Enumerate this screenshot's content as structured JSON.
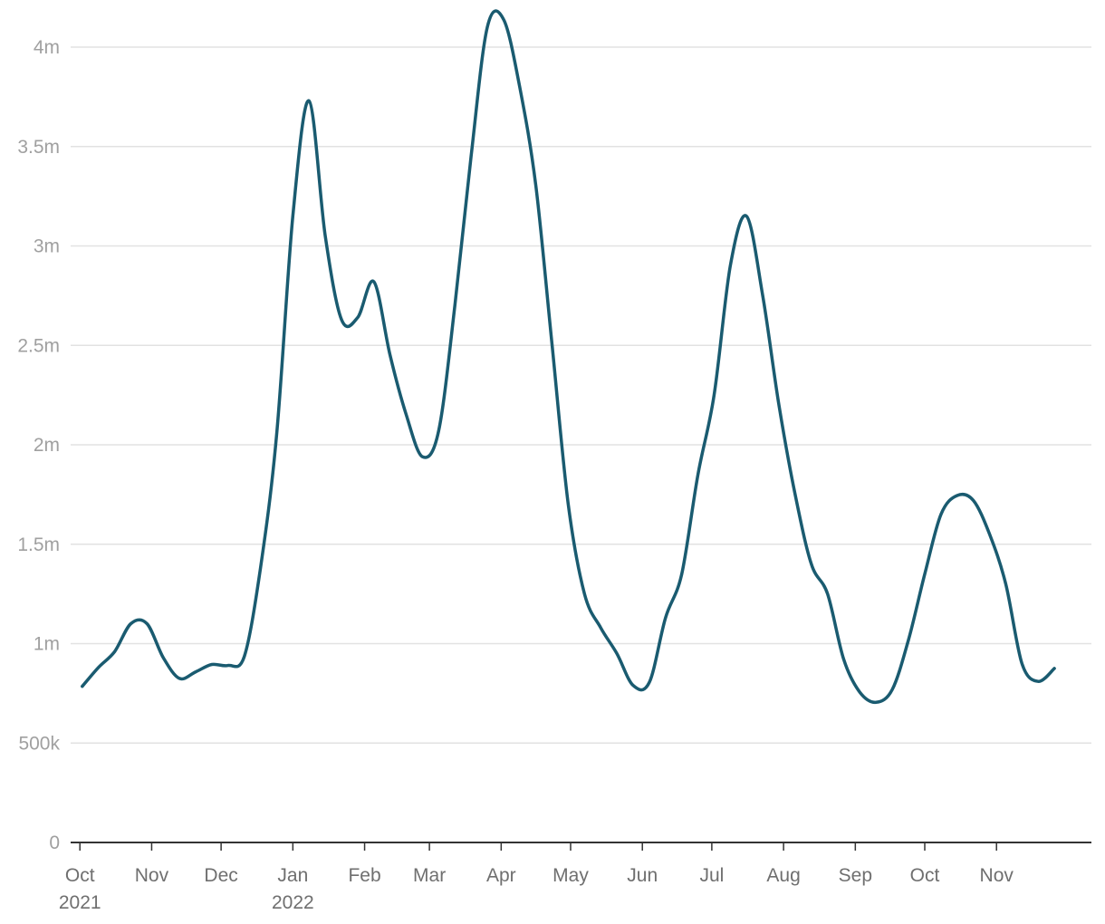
{
  "chart_data": {
    "type": "line",
    "title": "",
    "xlabel": "",
    "ylabel": "",
    "ylim": [
      0,
      4000000
    ],
    "y_ticks": [
      {
        "value": 0,
        "label": "0"
      },
      {
        "value": 500000,
        "label": "500k"
      },
      {
        "value": 1000000,
        "label": "1m"
      },
      {
        "value": 1500000,
        "label": "1.5m"
      },
      {
        "value": 2000000,
        "label": "2m"
      },
      {
        "value": 2500000,
        "label": "2.5m"
      },
      {
        "value": 3000000,
        "label": "3m"
      },
      {
        "value": 3500000,
        "label": "3.5m"
      },
      {
        "value": 4000000,
        "label": "4m"
      }
    ],
    "x_ticks": [
      {
        "date": "2021-10-01",
        "label": "Oct",
        "year": "2021"
      },
      {
        "date": "2021-11-01",
        "label": "Nov",
        "year": ""
      },
      {
        "date": "2021-12-01",
        "label": "Dec",
        "year": ""
      },
      {
        "date": "2022-01-01",
        "label": "Jan",
        "year": "2022"
      },
      {
        "date": "2022-02-01",
        "label": "Feb",
        "year": ""
      },
      {
        "date": "2022-03-01",
        "label": "Mar",
        "year": ""
      },
      {
        "date": "2022-04-01",
        "label": "Apr",
        "year": ""
      },
      {
        "date": "2022-05-01",
        "label": "May",
        "year": ""
      },
      {
        "date": "2022-06-01",
        "label": "Jun",
        "year": ""
      },
      {
        "date": "2022-07-01",
        "label": "Jul",
        "year": ""
      },
      {
        "date": "2022-08-01",
        "label": "Aug",
        "year": ""
      },
      {
        "date": "2022-09-01",
        "label": "Sep",
        "year": ""
      },
      {
        "date": "2022-10-01",
        "label": "Oct",
        "year": ""
      },
      {
        "date": "2022-11-01",
        "label": "Nov",
        "year": ""
      }
    ],
    "x_range": [
      "2021-09-27",
      "2022-12-12"
    ],
    "grid": true,
    "legend": "none",
    "series": [
      {
        "color": "#1a5b70",
        "points": [
          [
            "2021-10-02",
            785000
          ],
          [
            "2021-10-09",
            880000
          ],
          [
            "2021-10-16",
            960000
          ],
          [
            "2021-10-23",
            1100000
          ],
          [
            "2021-10-30",
            1100000
          ],
          [
            "2021-11-06",
            930000
          ],
          [
            "2021-11-13",
            825000
          ],
          [
            "2021-11-20",
            858000
          ],
          [
            "2021-11-27",
            895000
          ],
          [
            "2021-12-04",
            890000
          ],
          [
            "2021-12-11",
            935000
          ],
          [
            "2021-12-18",
            1380000
          ],
          [
            "2021-12-25",
            2050000
          ],
          [
            "2022-01-01",
            3150000
          ],
          [
            "2022-01-08",
            3730000
          ],
          [
            "2022-01-15",
            3050000
          ],
          [
            "2022-01-22",
            2630000
          ],
          [
            "2022-01-29",
            2640000
          ],
          [
            "2022-02-05",
            2820000
          ],
          [
            "2022-02-12",
            2450000
          ],
          [
            "2022-02-19",
            2150000
          ],
          [
            "2022-02-26",
            1940000
          ],
          [
            "2022-03-05",
            2070000
          ],
          [
            "2022-03-12",
            2700000
          ],
          [
            "2022-03-19",
            3450000
          ],
          [
            "2022-03-26",
            4100000
          ],
          [
            "2022-04-02",
            4140000
          ],
          [
            "2022-04-09",
            3800000
          ],
          [
            "2022-04-16",
            3300000
          ],
          [
            "2022-04-23",
            2500000
          ],
          [
            "2022-04-30",
            1700000
          ],
          [
            "2022-05-07",
            1250000
          ],
          [
            "2022-05-14",
            1080000
          ],
          [
            "2022-05-21",
            950000
          ],
          [
            "2022-05-28",
            790000
          ],
          [
            "2022-06-04",
            805000
          ],
          [
            "2022-06-11",
            1130000
          ],
          [
            "2022-06-18",
            1350000
          ],
          [
            "2022-06-25",
            1850000
          ],
          [
            "2022-07-02",
            2250000
          ],
          [
            "2022-07-09",
            2900000
          ],
          [
            "2022-07-16",
            3150000
          ],
          [
            "2022-07-23",
            2750000
          ],
          [
            "2022-07-30",
            2200000
          ],
          [
            "2022-08-06",
            1750000
          ],
          [
            "2022-08-13",
            1400000
          ],
          [
            "2022-08-20",
            1250000
          ],
          [
            "2022-08-27",
            920000
          ],
          [
            "2022-09-03",
            755000
          ],
          [
            "2022-09-10",
            705000
          ],
          [
            "2022-09-17",
            770000
          ],
          [
            "2022-09-24",
            1020000
          ],
          [
            "2022-10-01",
            1350000
          ],
          [
            "2022-10-08",
            1650000
          ],
          [
            "2022-10-15",
            1745000
          ],
          [
            "2022-10-22",
            1720000
          ],
          [
            "2022-10-29",
            1550000
          ],
          [
            "2022-11-05",
            1300000
          ],
          [
            "2022-11-12",
            900000
          ],
          [
            "2022-11-19",
            810000
          ],
          [
            "2022-11-26",
            875000
          ]
        ]
      }
    ]
  }
}
